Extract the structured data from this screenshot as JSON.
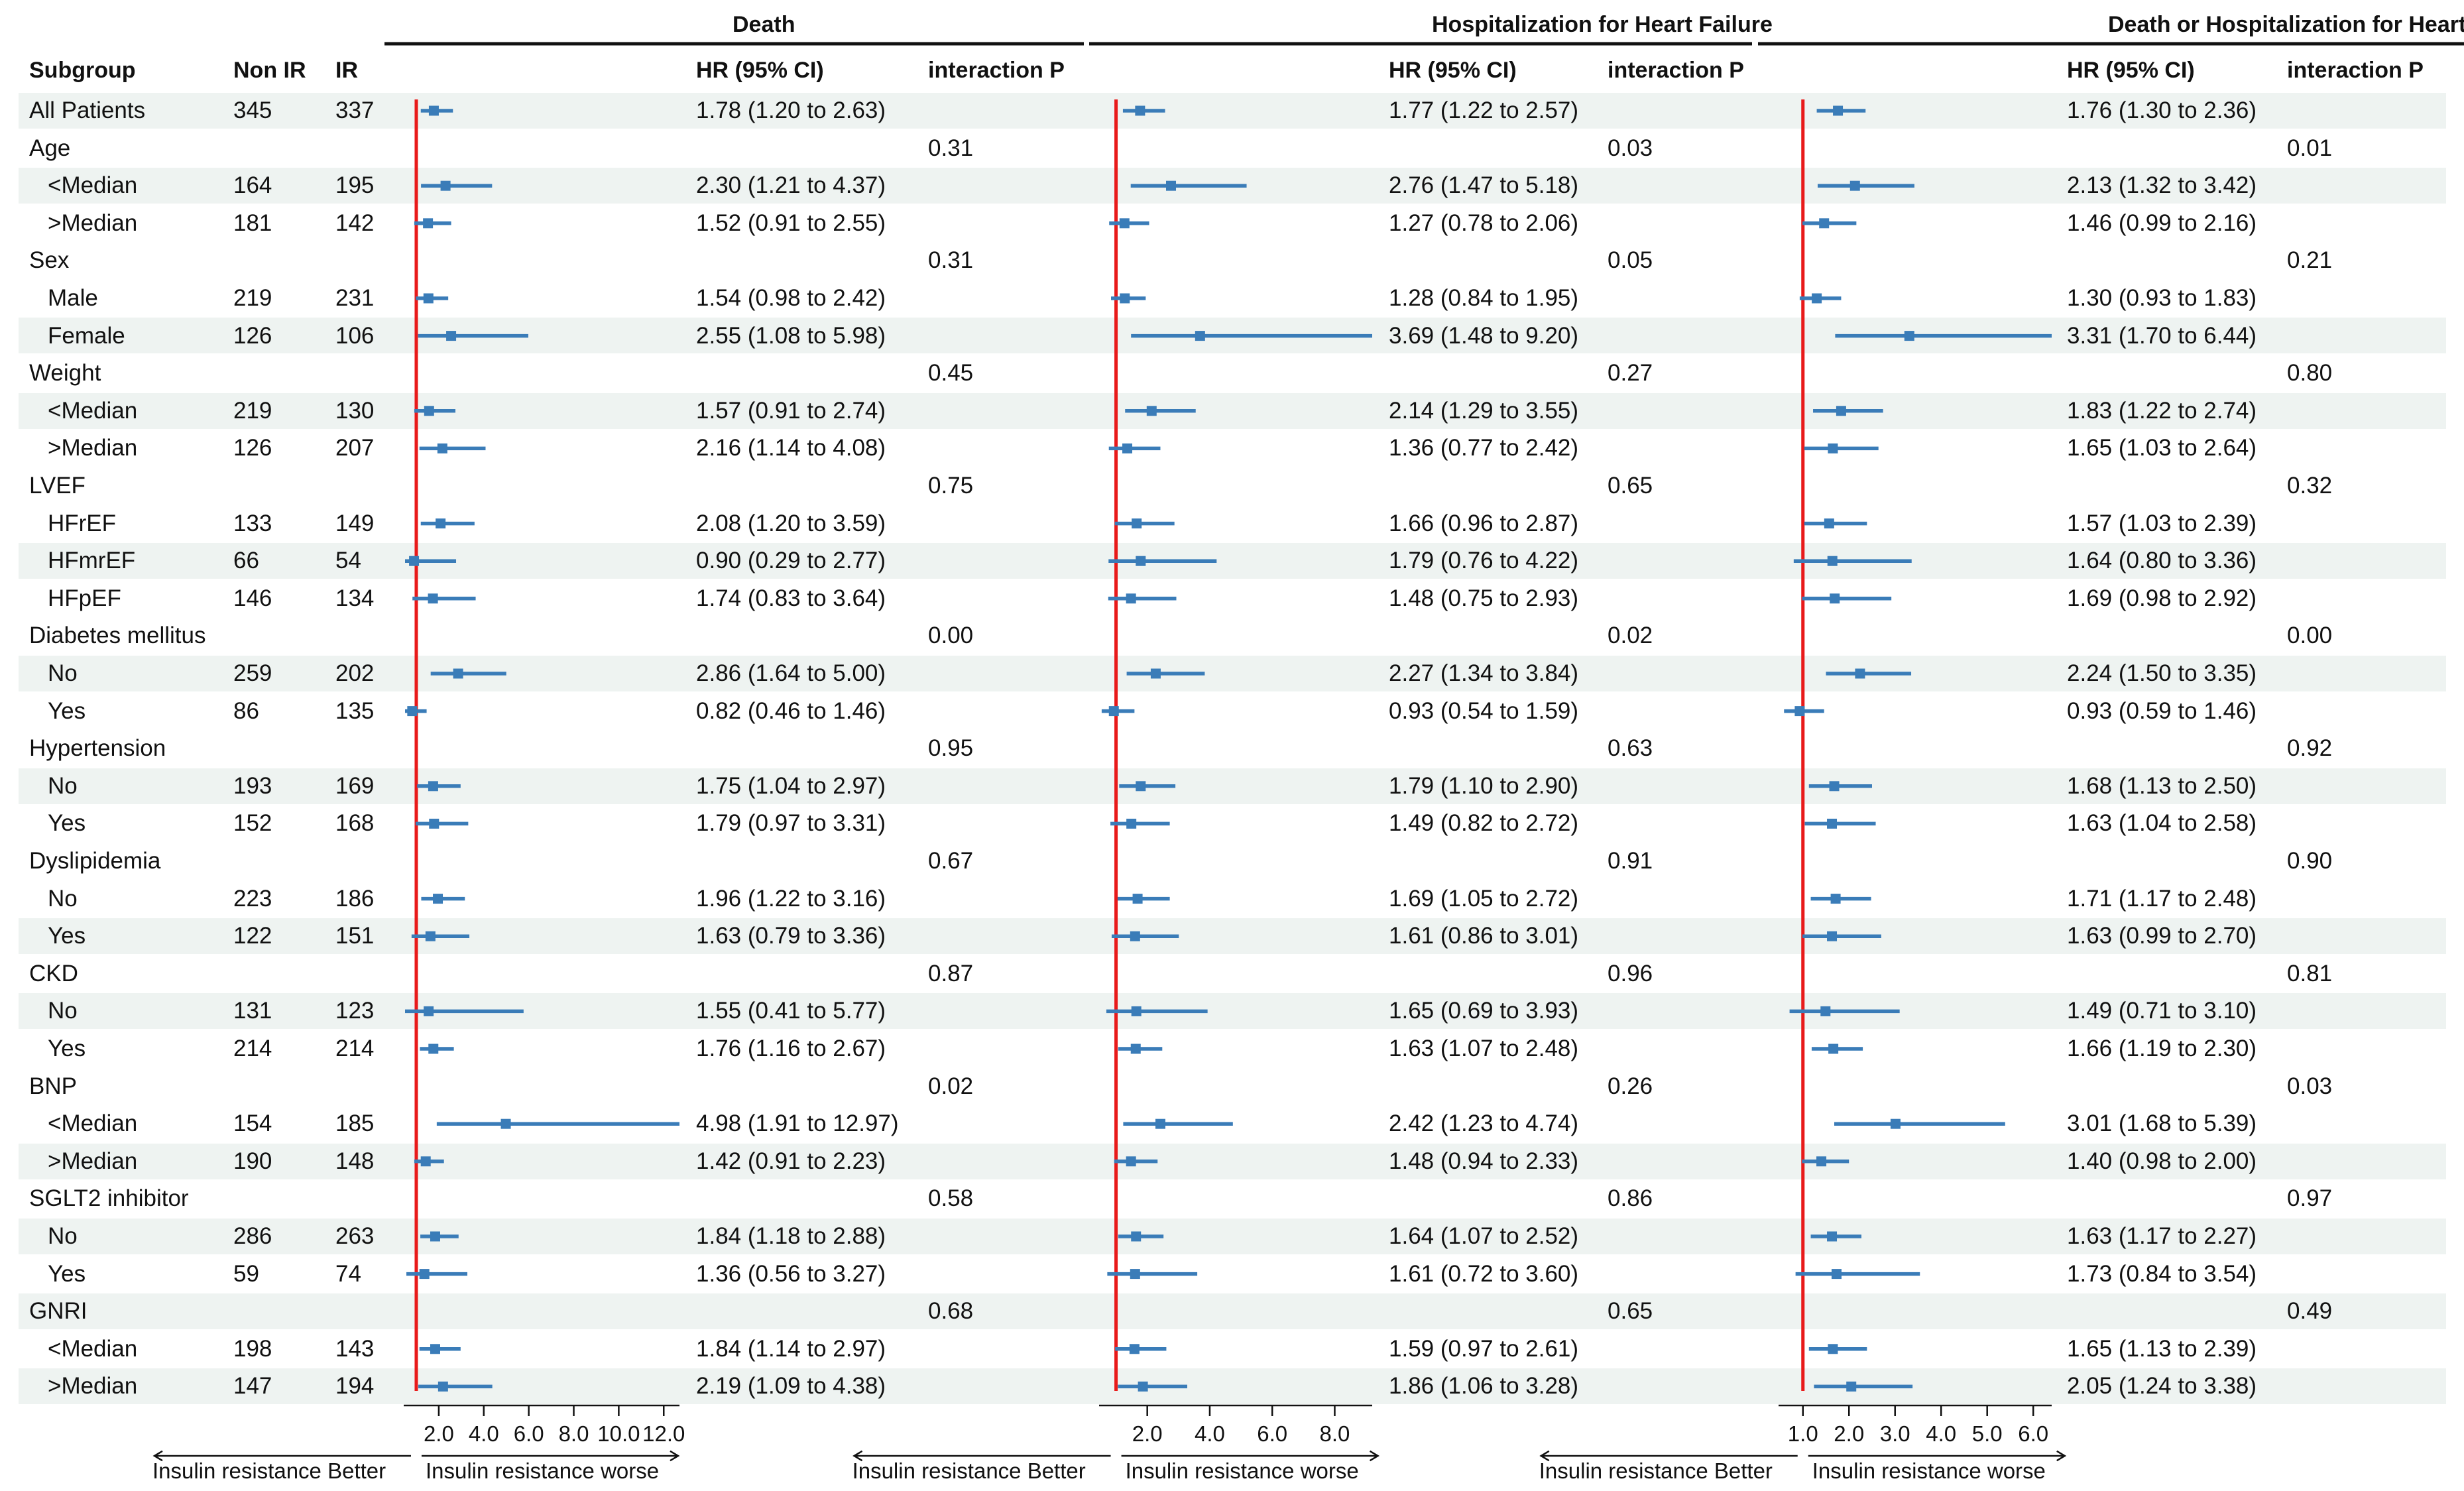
{
  "chart_data": {
    "type": "forest",
    "headers": {
      "subgroup": "Subgroup",
      "non_ir": "Non IR",
      "ir": "IR",
      "hr": "HR (95% CI)",
      "interaction": "interaction P"
    },
    "panels": [
      {
        "title": "Death",
        "ticks": [
          "2.0",
          "4.0",
          "6.0",
          "8.0",
          "10.0",
          "12.0"
        ],
        "tick_values": [
          2,
          4,
          6,
          8,
          10,
          12
        ],
        "xlim": [
          0.5,
          12.7
        ],
        "reference": 1.0,
        "left_label": "Insulin resistance Better",
        "right_label": "Insulin resistance worse"
      },
      {
        "title": "Hospitalization for Heart Failure",
        "ticks": [
          "2.0",
          "4.0",
          "6.0",
          "8.0"
        ],
        "tick_values": [
          2,
          4,
          6,
          8
        ],
        "xlim": [
          0.5,
          9.2
        ],
        "reference": 1.0,
        "left_label": "Insulin resistance Better",
        "right_label": "Insulin resistance worse"
      },
      {
        "title": "Death or Hospitalization for Heart Failure",
        "ticks": [
          "1.0",
          "2.0",
          "3.0",
          "4.0",
          "5.0",
          "6.0"
        ],
        "tick_values": [
          1,
          2,
          3,
          4,
          5,
          6
        ],
        "xlim": [
          0.5,
          6.4
        ],
        "reference": 1.0,
        "left_label": "Insulin resistance Better",
        "right_label": "Insulin resistance worse"
      }
    ],
    "rows": [
      {
        "label": "All Patients",
        "indent": false,
        "stripe": true,
        "non_ir": "345",
        "ir": "337",
        "p": [
          "",
          "",
          ""
        ],
        "est": [
          [
            1.78,
            1.2,
            2.63
          ],
          [
            1.77,
            1.22,
            2.57
          ],
          [
            1.76,
            1.3,
            2.36
          ]
        ],
        "hr_text": [
          "1.78 (1.20 to 2.63)",
          "1.77 (1.22 to 2.57)",
          "1.76 (1.30 to 2.36)"
        ]
      },
      {
        "label": "Age",
        "indent": false,
        "stripe": false,
        "non_ir": "",
        "ir": "",
        "p": [
          "0.31",
          "0.03",
          "0.01"
        ],
        "est": null,
        "hr_text": [
          "",
          "",
          ""
        ]
      },
      {
        "label": "<Median",
        "indent": true,
        "stripe": true,
        "non_ir": "164",
        "ir": "195",
        "p": [
          "",
          "",
          ""
        ],
        "est": [
          [
            2.3,
            1.21,
            4.37
          ],
          [
            2.76,
            1.47,
            5.18
          ],
          [
            2.13,
            1.32,
            3.42
          ]
        ],
        "hr_text": [
          "2.30 (1.21 to 4.37)",
          "2.76 (1.47 to 5.18)",
          "2.13 (1.32 to 3.42)"
        ]
      },
      {
        "label": ">Median",
        "indent": true,
        "stripe": false,
        "non_ir": "181",
        "ir": "142",
        "p": [
          "",
          "",
          ""
        ],
        "est": [
          [
            1.52,
            0.91,
            2.55
          ],
          [
            1.27,
            0.78,
            2.06
          ],
          [
            1.46,
            0.99,
            2.16
          ]
        ],
        "hr_text": [
          "1.52 (0.91 to 2.55)",
          "1.27 (0.78 to 2.06)",
          "1.46 (0.99 to 2.16)"
        ]
      },
      {
        "label": "Sex",
        "indent": false,
        "stripe": false,
        "non_ir": "",
        "ir": "",
        "p": [
          "0.31",
          "0.05",
          "0.21"
        ],
        "est": null,
        "hr_text": [
          "",
          "",
          ""
        ]
      },
      {
        "label": "Male",
        "indent": true,
        "stripe": false,
        "non_ir": "219",
        "ir": "231",
        "p": [
          "",
          "",
          ""
        ],
        "est": [
          [
            1.54,
            0.98,
            2.42
          ],
          [
            1.28,
            0.84,
            1.95
          ],
          [
            1.3,
            0.93,
            1.83
          ]
        ],
        "hr_text": [
          "1.54 (0.98 to 2.42)",
          "1.28 (0.84 to 1.95)",
          "1.30 (0.93 to 1.83)"
        ]
      },
      {
        "label": "Female",
        "indent": true,
        "stripe": true,
        "non_ir": "126",
        "ir": "106",
        "p": [
          "",
          "",
          ""
        ],
        "est": [
          [
            2.55,
            1.08,
            5.98
          ],
          [
            3.69,
            1.48,
            9.2
          ],
          [
            3.31,
            1.7,
            6.44
          ]
        ],
        "hr_text": [
          "2.55 (1.08 to 5.98)",
          "3.69 (1.48 to 9.20)",
          "3.31 (1.70 to 6.44)"
        ]
      },
      {
        "label": "Weight",
        "indent": false,
        "stripe": false,
        "non_ir": "",
        "ir": "",
        "p": [
          "0.45",
          "0.27",
          "0.80"
        ],
        "est": null,
        "hr_text": [
          "",
          "",
          ""
        ]
      },
      {
        "label": "<Median",
        "indent": true,
        "stripe": true,
        "non_ir": "219",
        "ir": "130",
        "p": [
          "",
          "",
          ""
        ],
        "est": [
          [
            1.57,
            0.91,
            2.74
          ],
          [
            2.14,
            1.29,
            3.55
          ],
          [
            1.83,
            1.22,
            2.74
          ]
        ],
        "hr_text": [
          "1.57 (0.91 to 2.74)",
          "2.14 (1.29 to 3.55)",
          "1.83 (1.22 to 2.74)"
        ]
      },
      {
        "label": ">Median",
        "indent": true,
        "stripe": false,
        "non_ir": "126",
        "ir": "207",
        "p": [
          "",
          "",
          ""
        ],
        "est": [
          [
            2.16,
            1.14,
            4.08
          ],
          [
            1.36,
            0.77,
            2.42
          ],
          [
            1.65,
            1.03,
            2.64
          ]
        ],
        "hr_text": [
          "2.16 (1.14 to 4.08)",
          "1.36 (0.77 to 2.42)",
          "1.65 (1.03 to 2.64)"
        ]
      },
      {
        "label": "LVEF",
        "indent": false,
        "stripe": false,
        "non_ir": "",
        "ir": "",
        "p": [
          "0.75",
          "0.65",
          "0.32"
        ],
        "est": null,
        "hr_text": [
          "",
          "",
          ""
        ]
      },
      {
        "label": "HFrEF",
        "indent": true,
        "stripe": false,
        "non_ir": "133",
        "ir": "149",
        "p": [
          "",
          "",
          ""
        ],
        "est": [
          [
            2.08,
            1.2,
            3.59
          ],
          [
            1.66,
            0.96,
            2.87
          ],
          [
            1.57,
            1.03,
            2.39
          ]
        ],
        "hr_text": [
          "2.08 (1.20 to 3.59)",
          "1.66 (0.96 to 2.87)",
          "1.57 (1.03 to 2.39)"
        ]
      },
      {
        "label": "HFmrEF",
        "indent": true,
        "stripe": true,
        "non_ir": "66",
        "ir": "54",
        "p": [
          "",
          "",
          ""
        ],
        "est": [
          [
            0.9,
            0.29,
            2.77
          ],
          [
            1.79,
            0.76,
            4.22
          ],
          [
            1.64,
            0.8,
            3.36
          ]
        ],
        "hr_text": [
          "0.90 (0.29 to 2.77)",
          "1.79 (0.76 to 4.22)",
          "1.64 (0.80 to 3.36)"
        ]
      },
      {
        "label": "HFpEF",
        "indent": true,
        "stripe": false,
        "non_ir": "146",
        "ir": "134",
        "p": [
          "",
          "",
          ""
        ],
        "est": [
          [
            1.74,
            0.83,
            3.64
          ],
          [
            1.48,
            0.75,
            2.93
          ],
          [
            1.69,
            0.98,
            2.92
          ]
        ],
        "hr_text": [
          "1.74 (0.83 to 3.64)",
          "1.48 (0.75 to 2.93)",
          "1.69 (0.98 to 2.92)"
        ]
      },
      {
        "label": "Diabetes mellitus",
        "indent": false,
        "stripe": false,
        "non_ir": "",
        "ir": "",
        "p": [
          "0.00",
          "0.02",
          "0.00"
        ],
        "est": null,
        "hr_text": [
          "",
          "",
          ""
        ]
      },
      {
        "label": "No",
        "indent": true,
        "stripe": true,
        "non_ir": "259",
        "ir": "202",
        "p": [
          "",
          "",
          ""
        ],
        "est": [
          [
            2.86,
            1.64,
            5.0
          ],
          [
            2.27,
            1.34,
            3.84
          ],
          [
            2.24,
            1.5,
            3.35
          ]
        ],
        "hr_text": [
          "2.86 (1.64 to 5.00)",
          "2.27 (1.34 to 3.84)",
          "2.24 (1.50 to 3.35)"
        ]
      },
      {
        "label": "Yes",
        "indent": true,
        "stripe": false,
        "non_ir": "86",
        "ir": "135",
        "p": [
          "",
          "",
          ""
        ],
        "est": [
          [
            0.82,
            0.46,
            1.46
          ],
          [
            0.93,
            0.54,
            1.59
          ],
          [
            0.93,
            0.59,
            1.46
          ]
        ],
        "hr_text": [
          "0.82 (0.46 to 1.46)",
          "0.93 (0.54 to 1.59)",
          "0.93 (0.59 to 1.46)"
        ]
      },
      {
        "label": "Hypertension",
        "indent": false,
        "stripe": false,
        "non_ir": "",
        "ir": "",
        "p": [
          "0.95",
          "0.63",
          "0.92"
        ],
        "est": null,
        "hr_text": [
          "",
          "",
          ""
        ]
      },
      {
        "label": "No",
        "indent": true,
        "stripe": true,
        "non_ir": "193",
        "ir": "169",
        "p": [
          "",
          "",
          ""
        ],
        "est": [
          [
            1.75,
            1.04,
            2.97
          ],
          [
            1.79,
            1.1,
            2.9
          ],
          [
            1.68,
            1.13,
            2.5
          ]
        ],
        "hr_text": [
          "1.75 (1.04 to 2.97)",
          "1.79 (1.10 to 2.90)",
          "1.68 (1.13 to 2.50)"
        ]
      },
      {
        "label": "Yes",
        "indent": true,
        "stripe": false,
        "non_ir": "152",
        "ir": "168",
        "p": [
          "",
          "",
          ""
        ],
        "est": [
          [
            1.79,
            0.97,
            3.31
          ],
          [
            1.49,
            0.82,
            2.72
          ],
          [
            1.63,
            1.04,
            2.58
          ]
        ],
        "hr_text": [
          "1.79 (0.97 to 3.31)",
          "1.49 (0.82 to 2.72)",
          "1.63 (1.04 to 2.58)"
        ]
      },
      {
        "label": "Dyslipidemia",
        "indent": false,
        "stripe": false,
        "non_ir": "",
        "ir": "",
        "p": [
          "0.67",
          "0.91",
          "0.90"
        ],
        "est": null,
        "hr_text": [
          "",
          "",
          ""
        ]
      },
      {
        "label": "No",
        "indent": true,
        "stripe": false,
        "non_ir": "223",
        "ir": "186",
        "p": [
          "",
          "",
          ""
        ],
        "est": [
          [
            1.96,
            1.22,
            3.16
          ],
          [
            1.69,
            1.05,
            2.72
          ],
          [
            1.71,
            1.17,
            2.48
          ]
        ],
        "hr_text": [
          "1.96 (1.22 to 3.16)",
          "1.69 (1.05 to 2.72)",
          "1.71 (1.17 to 2.48)"
        ]
      },
      {
        "label": "Yes",
        "indent": true,
        "stripe": true,
        "non_ir": "122",
        "ir": "151",
        "p": [
          "",
          "",
          ""
        ],
        "est": [
          [
            1.63,
            0.79,
            3.36
          ],
          [
            1.61,
            0.86,
            3.01
          ],
          [
            1.63,
            0.99,
            2.7
          ]
        ],
        "hr_text": [
          "1.63 (0.79 to 3.36)",
          "1.61 (0.86 to 3.01)",
          "1.63 (0.99 to 2.70)"
        ]
      },
      {
        "label": "CKD",
        "indent": false,
        "stripe": false,
        "non_ir": "",
        "ir": "",
        "p": [
          "0.87",
          "0.96",
          "0.81"
        ],
        "est": null,
        "hr_text": [
          "",
          "",
          ""
        ]
      },
      {
        "label": "No",
        "indent": true,
        "stripe": true,
        "non_ir": "131",
        "ir": "123",
        "p": [
          "",
          "",
          ""
        ],
        "est": [
          [
            1.55,
            0.41,
            5.77
          ],
          [
            1.65,
            0.69,
            3.93
          ],
          [
            1.49,
            0.71,
            3.1
          ]
        ],
        "hr_text": [
          "1.55 (0.41 to 5.77)",
          "1.65 (0.69 to 3.93)",
          "1.49 (0.71 to 3.10)"
        ]
      },
      {
        "label": "Yes",
        "indent": true,
        "stripe": false,
        "non_ir": "214",
        "ir": "214",
        "p": [
          "",
          "",
          ""
        ],
        "est": [
          [
            1.76,
            1.16,
            2.67
          ],
          [
            1.63,
            1.07,
            2.48
          ],
          [
            1.66,
            1.19,
            2.3
          ]
        ],
        "hr_text": [
          "1.76 (1.16 to 2.67)",
          "1.63 (1.07 to 2.48)",
          "1.66 (1.19 to 2.30)"
        ]
      },
      {
        "label": "BNP",
        "indent": false,
        "stripe": false,
        "non_ir": "",
        "ir": "",
        "p": [
          "0.02",
          "0.26",
          "0.03"
        ],
        "est": null,
        "hr_text": [
          "",
          "",
          ""
        ]
      },
      {
        "label": "<Median",
        "indent": true,
        "stripe": false,
        "non_ir": "154",
        "ir": "185",
        "p": [
          "",
          "",
          ""
        ],
        "est": [
          [
            4.98,
            1.91,
            12.97
          ],
          [
            2.42,
            1.23,
            4.74
          ],
          [
            3.01,
            1.68,
            5.39
          ]
        ],
        "hr_text": [
          "4.98 (1.91 to 12.97)",
          "2.42 (1.23 to 4.74)",
          "3.01 (1.68 to 5.39)"
        ]
      },
      {
        "label": ">Median",
        "indent": true,
        "stripe": true,
        "non_ir": "190",
        "ir": "148",
        "p": [
          "",
          "",
          ""
        ],
        "est": [
          [
            1.42,
            0.91,
            2.23
          ],
          [
            1.48,
            0.94,
            2.33
          ],
          [
            1.4,
            0.98,
            2.0
          ]
        ],
        "hr_text": [
          "1.42 (0.91 to 2.23)",
          "1.48 (0.94 to 2.33)",
          "1.40 (0.98 to 2.00)"
        ]
      },
      {
        "label": "SGLT2 inhibitor",
        "indent": false,
        "stripe": false,
        "non_ir": "",
        "ir": "",
        "p": [
          "0.58",
          "0.86",
          "0.97"
        ],
        "est": null,
        "hr_text": [
          "",
          "",
          ""
        ]
      },
      {
        "label": "No",
        "indent": true,
        "stripe": true,
        "non_ir": "286",
        "ir": "263",
        "p": [
          "",
          "",
          ""
        ],
        "est": [
          [
            1.84,
            1.18,
            2.88
          ],
          [
            1.64,
            1.07,
            2.52
          ],
          [
            1.63,
            1.17,
            2.27
          ]
        ],
        "hr_text": [
          "1.84 (1.18 to 2.88)",
          "1.64 (1.07 to 2.52)",
          "1.63 (1.17 to 2.27)"
        ]
      },
      {
        "label": "Yes",
        "indent": true,
        "stripe": false,
        "non_ir": "59",
        "ir": "74",
        "p": [
          "",
          "",
          ""
        ],
        "est": [
          [
            1.36,
            0.56,
            3.27
          ],
          [
            1.61,
            0.72,
            3.6
          ],
          [
            1.73,
            0.84,
            3.54
          ]
        ],
        "hr_text": [
          "1.36 (0.56 to 3.27)",
          "1.61 (0.72 to 3.60)",
          "1.73 (0.84 to 3.54)"
        ]
      },
      {
        "label": "GNRI",
        "indent": false,
        "stripe": true,
        "non_ir": "",
        "ir": "",
        "p": [
          "0.68",
          "0.65",
          "0.49"
        ],
        "est": null,
        "hr_text": [
          "",
          "",
          ""
        ]
      },
      {
        "label": "<Median",
        "indent": true,
        "stripe": false,
        "non_ir": "198",
        "ir": "143",
        "p": [
          "",
          "",
          ""
        ],
        "est": [
          [
            1.84,
            1.14,
            2.97
          ],
          [
            1.59,
            0.97,
            2.61
          ],
          [
            1.65,
            1.13,
            2.39
          ]
        ],
        "hr_text": [
          "1.84 (1.14 to 2.97)",
          "1.59 (0.97 to 2.61)",
          "1.65 (1.13 to 2.39)"
        ]
      },
      {
        "label": ">Median",
        "indent": true,
        "stripe": true,
        "non_ir": "147",
        "ir": "194",
        "p": [
          "",
          "",
          ""
        ],
        "est": [
          [
            2.19,
            1.09,
            4.38
          ],
          [
            1.86,
            1.06,
            3.28
          ],
          [
            2.05,
            1.24,
            3.38
          ]
        ],
        "hr_text": [
          "2.19 (1.09 to 4.38)",
          "1.86 (1.06 to 3.28)",
          "2.05 (1.24 to 3.38)"
        ]
      }
    ],
    "colors": {
      "marker": "#3a7cb8",
      "reference_line": "#e81a1a",
      "stripe": "#eef3f1",
      "text": "#111111"
    }
  }
}
